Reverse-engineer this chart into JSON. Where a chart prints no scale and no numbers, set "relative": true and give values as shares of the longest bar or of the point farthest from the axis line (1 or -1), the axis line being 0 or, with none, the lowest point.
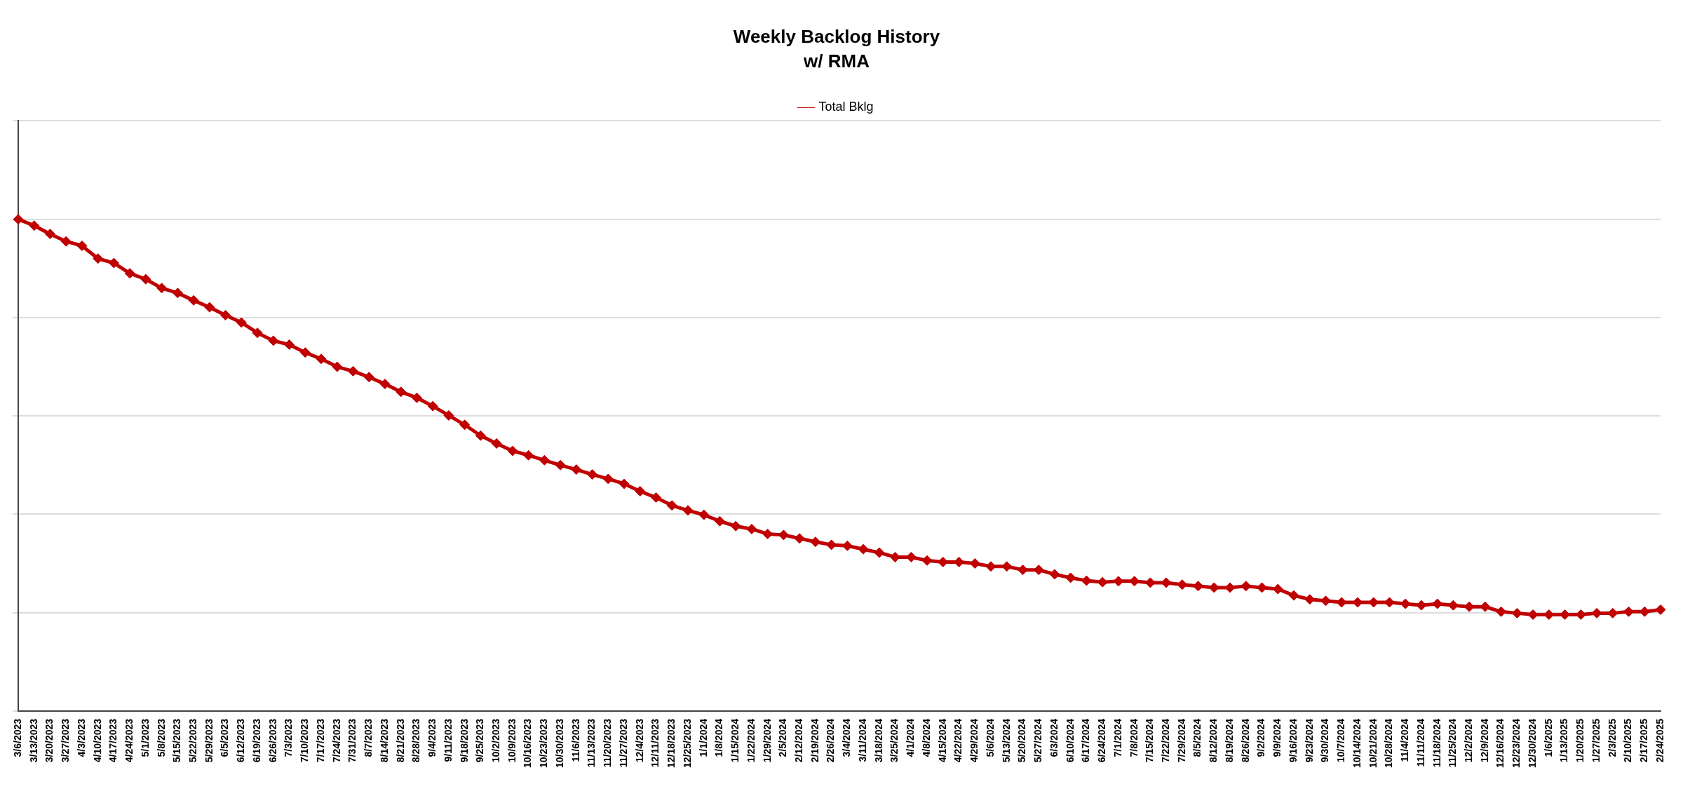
{
  "chart_data": {
    "type": "line",
    "title": "Weekly Backlog History",
    "subtitle": "w/ RMA",
    "relative": true,
    "grid": "y",
    "legend": "top",
    "marker": "diamond",
    "line_style": "solid",
    "categories": [
      "3/6/2023",
      "3/13/2023",
      "3/20/2023",
      "3/27/2023",
      "4/3/2023",
      "4/10/2023",
      "4/17/2023",
      "4/24/2023",
      "5/1/2023",
      "5/8/2023",
      "5/15/2023",
      "5/22/2023",
      "5/29/2023",
      "6/5/2023",
      "6/12/2023",
      "6/19/2023",
      "6/26/2023",
      "7/3/2023",
      "7/10/2023",
      "7/17/2023",
      "7/24/2023",
      "7/31/2023",
      "8/7/2023",
      "8/14/2023",
      "8/21/2023",
      "8/28/2023",
      "9/4/2023",
      "9/11/2023",
      "9/18/2023",
      "9/25/2023",
      "10/2/2023",
      "10/9/2023",
      "10/16/2023",
      "10/23/2023",
      "10/30/2023",
      "11/6/2023",
      "11/13/2023",
      "11/20/2023",
      "11/27/2023",
      "12/4/2023",
      "12/11/2023",
      "12/18/2023",
      "12/25/2023",
      "1/1/2024",
      "1/8/2024",
      "1/15/2024",
      "1/22/2024",
      "1/29/2024",
      "2/5/2024",
      "2/12/2024",
      "2/19/2024",
      "2/26/2024",
      "3/4/2024",
      "3/11/2024",
      "3/18/2024",
      "3/25/2024",
      "4/1/2024",
      "4/8/2024",
      "4/15/2024",
      "4/22/2024",
      "4/29/2024",
      "5/6/2024",
      "5/13/2024",
      "5/20/2024",
      "5/27/2024",
      "6/3/2024",
      "6/10/2024",
      "6/17/2024",
      "6/24/2024",
      "7/1/2024",
      "7/8/2024",
      "7/15/2024",
      "7/22/2024",
      "7/29/2024",
      "8/5/2024",
      "8/12/2024",
      "8/19/2024",
      "8/26/2024",
      "9/2/2024",
      "9/9/2024",
      "9/16/2024",
      "9/23/2024",
      "9/30/2024",
      "10/7/2024",
      "10/14/2024",
      "10/21/2024",
      "10/28/2024",
      "11/4/2024",
      "11/11/2024",
      "11/18/2024",
      "11/25/2024",
      "12/2/2024",
      "12/9/2024",
      "12/16/2024",
      "12/23/2024",
      "12/30/2024",
      "1/6/2025",
      "1/13/2025",
      "1/20/2025",
      "1/27/2025",
      "2/3/2025",
      "2/10/2025",
      "2/17/2025",
      "2/24/2025"
    ],
    "series": [
      {
        "name": "Total Bklg",
        "color": "#c00000",
        "values": [
          1,
          0.987,
          0.97,
          0.955,
          0.946,
          0.92,
          0.911,
          0.89,
          0.878,
          0.86,
          0.85,
          0.835,
          0.821,
          0.805,
          0.79,
          0.769,
          0.753,
          0.745,
          0.729,
          0.716,
          0.7,
          0.691,
          0.679,
          0.665,
          0.649,
          0.637,
          0.62,
          0.601,
          0.582,
          0.56,
          0.544,
          0.529,
          0.52,
          0.51,
          0.5,
          0.491,
          0.481,
          0.472,
          0.462,
          0.447,
          0.434,
          0.418,
          0.408,
          0.399,
          0.386,
          0.376,
          0.37,
          0.36,
          0.358,
          0.351,
          0.344,
          0.338,
          0.336,
          0.329,
          0.322,
          0.313,
          0.313,
          0.306,
          0.303,
          0.303,
          0.3,
          0.294,
          0.294,
          0.287,
          0.287,
          0.278,
          0.271,
          0.265,
          0.262,
          0.264,
          0.264,
          0.261,
          0.261,
          0.257,
          0.254,
          0.251,
          0.251,
          0.254,
          0.251,
          0.248,
          0.235,
          0.227,
          0.224,
          0.221,
          0.221,
          0.221,
          0.221,
          0.218,
          0.215,
          0.218,
          0.215,
          0.212,
          0.212,
          0.202,
          0.199,
          0.196,
          0.196,
          0.196,
          0.196,
          0.199,
          0.199,
          0.202,
          0.202,
          0.206
        ]
      }
    ]
  }
}
